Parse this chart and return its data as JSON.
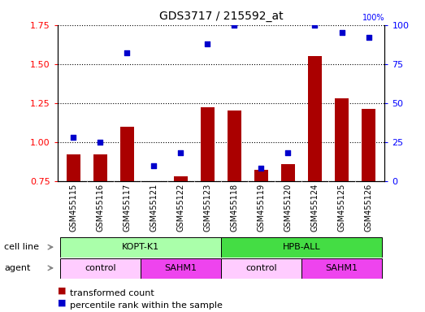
{
  "title": "GDS3717 / 215592_at",
  "samples": [
    "GSM455115",
    "GSM455116",
    "GSM455117",
    "GSM455121",
    "GSM455122",
    "GSM455123",
    "GSM455118",
    "GSM455119",
    "GSM455120",
    "GSM455124",
    "GSM455125",
    "GSM455126"
  ],
  "transformed_count": [
    0.92,
    0.92,
    1.1,
    0.75,
    0.78,
    1.22,
    1.2,
    0.82,
    0.86,
    1.55,
    1.28,
    1.21
  ],
  "percentile_rank": [
    28,
    25,
    82,
    10,
    18,
    88,
    100,
    8,
    18,
    100,
    95,
    92
  ],
  "ylim_left": [
    0.75,
    1.75
  ],
  "ylim_right": [
    0,
    100
  ],
  "yticks_left": [
    0.75,
    1.0,
    1.25,
    1.5,
    1.75
  ],
  "yticks_right": [
    0,
    25,
    50,
    75,
    100
  ],
  "cell_line_groups": [
    {
      "label": "KOPT-K1",
      "start": 0,
      "end": 5,
      "color": "#AAFFAA"
    },
    {
      "label": "HPB-ALL",
      "start": 6,
      "end": 11,
      "color": "#44DD44"
    }
  ],
  "agent_groups": [
    {
      "label": "control",
      "start": 0,
      "end": 2,
      "color": "#FFCCFF"
    },
    {
      "label": "SAHM1",
      "start": 3,
      "end": 5,
      "color": "#EE44EE"
    },
    {
      "label": "control",
      "start": 6,
      "end": 8,
      "color": "#FFCCFF"
    },
    {
      "label": "SAHM1",
      "start": 9,
      "end": 11,
      "color": "#EE44EE"
    }
  ],
  "bar_color": "#AA0000",
  "dot_color": "#0000CC",
  "bar_width": 0.5,
  "dot_size": 20,
  "background_color": "#FFFFFF",
  "tick_bg_color": "#CCCCCC",
  "legend_items": [
    {
      "label": "transformed count",
      "color": "#AA0000"
    },
    {
      "label": "percentile rank within the sample",
      "color": "#0000CC"
    }
  ]
}
